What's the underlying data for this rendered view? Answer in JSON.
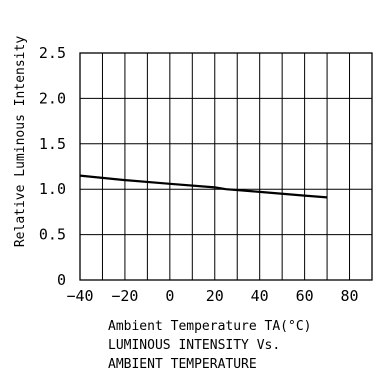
{
  "chart_data": {
    "type": "line",
    "title": "LUMINOUS INTENSITY Vs.\nAMBIENT TEMPERATURE",
    "title_lines": [
      "LUMINOUS INTENSITY Vs.",
      "AMBIENT TEMPERATURE"
    ],
    "xlabel": "Ambient Temperature TA(°C)",
    "ylabel": "Relative Luminous Intensity",
    "xlim": [
      -40,
      90
    ],
    "ylim": [
      0,
      2.5
    ],
    "x_ticks": [
      -40,
      -20,
      0,
      20,
      40,
      60,
      80
    ],
    "x_tick_labels": [
      "−40",
      "−20",
      "0",
      "20",
      "40",
      "60",
      "80"
    ],
    "y_ticks": [
      0,
      0.5,
      1.0,
      1.5,
      2.0,
      2.5
    ],
    "y_tick_labels": [
      "0",
      "0.5",
      "1.0",
      "1.5",
      "2.0",
      "2.5"
    ],
    "grid": true,
    "series": [
      {
        "x": [
          -40,
          -20,
          0,
          20,
          25,
          40,
          60,
          70
        ],
        "y": [
          1.15,
          1.1,
          1.06,
          1.02,
          1.0,
          0.97,
          0.93,
          0.91
        ]
      }
    ]
  }
}
